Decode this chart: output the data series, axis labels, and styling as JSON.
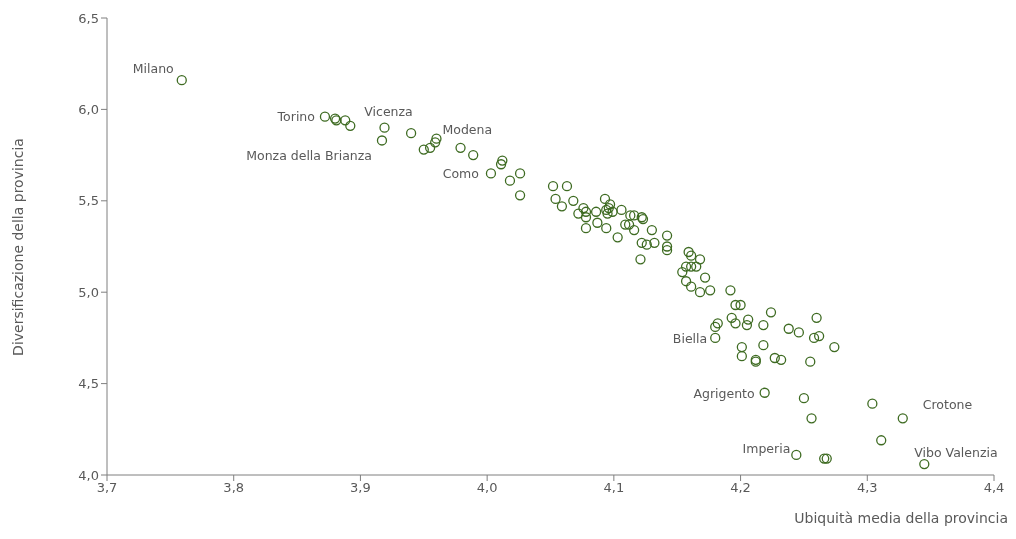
{
  "chart_data": {
    "type": "scatter",
    "xlabel": "Ubiquità media della provincia",
    "ylabel": "Diversificazione della provincia",
    "marker": "circle",
    "grid": false,
    "xlim": [
      3.7,
      4.4
    ],
    "xticks": [
      {
        "value": 3.7,
        "label": "3,7"
      },
      {
        "value": 3.8,
        "label": "3,8"
      },
      {
        "value": 3.9,
        "label": "3,9"
      },
      {
        "value": 4.0,
        "label": "4,0"
      },
      {
        "value": 4.1,
        "label": "4,1"
      },
      {
        "value": 4.2,
        "label": "4,2"
      },
      {
        "value": 4.3,
        "label": "4,3"
      },
      {
        "value": 4.4,
        "label": "4,4"
      }
    ],
    "ylim": [
      4.0,
      6.5
    ],
    "yticks": [
      {
        "value": 4.0,
        "label": "4,0"
      },
      {
        "value": 4.5,
        "label": "4,5"
      },
      {
        "value": 5.0,
        "label": "5,0"
      },
      {
        "value": 5.5,
        "label": "5,5"
      },
      {
        "value": 6.0,
        "label": "6,0"
      },
      {
        "value": 6.5,
        "label": "6,5"
      }
    ],
    "series": [
      {
        "color": "#3e6b22",
        "x": [
          3.759,
          3.872,
          3.88,
          3.881,
          3.888,
          3.892,
          3.919,
          3.917,
          3.94,
          3.95,
          3.955,
          3.959,
          3.96,
          3.979,
          3.989,
          4.012,
          4.011,
          4.003,
          4.018,
          4.026,
          4.026,
          4.052,
          4.063,
          4.054,
          4.059,
          4.068,
          4.072,
          4.076,
          4.078,
          4.078,
          4.086,
          4.078,
          4.087,
          4.094,
          4.093,
          4.094,
          4.096,
          4.097,
          4.095,
          4.099,
          4.106,
          4.103,
          4.109,
          4.113,
          4.116,
          4.112,
          4.116,
          4.123,
          4.122,
          4.13,
          4.121,
          4.122,
          4.126,
          4.132,
          4.142,
          4.142,
          4.142,
          4.159,
          4.161,
          4.154,
          4.157,
          4.161,
          4.165,
          4.168,
          4.157,
          4.161,
          4.168,
          4.176,
          4.172,
          4.192,
          4.196,
          4.2,
          4.182,
          4.18,
          4.18,
          4.193,
          4.196,
          4.206,
          4.205,
          4.218,
          4.224,
          4.238,
          4.246,
          4.26,
          4.258,
          4.262,
          4.274,
          4.201,
          4.201,
          4.218,
          4.212,
          4.212,
          4.227,
          4.232,
          4.255,
          4.219,
          4.25,
          4.256,
          4.304,
          4.328,
          4.311,
          4.244,
          4.266,
          4.268,
          4.345
        ],
        "values": [
          6.16,
          5.96,
          5.95,
          5.94,
          5.94,
          5.91,
          5.9,
          5.83,
          5.87,
          5.78,
          5.79,
          5.82,
          5.84,
          5.79,
          5.75,
          5.72,
          5.7,
          5.65,
          5.61,
          5.65,
          5.53,
          5.58,
          5.58,
          5.51,
          5.47,
          5.5,
          5.43,
          5.46,
          5.41,
          5.44,
          5.44,
          5.35,
          5.38,
          5.35,
          5.51,
          5.45,
          5.46,
          5.48,
          5.43,
          5.44,
          5.45,
          5.3,
          5.37,
          5.42,
          5.42,
          5.37,
          5.34,
          5.4,
          5.41,
          5.34,
          5.18,
          5.27,
          5.26,
          5.27,
          5.31,
          5.23,
          5.25,
          5.22,
          5.2,
          5.11,
          5.14,
          5.14,
          5.14,
          5.18,
          5.06,
          5.03,
          5.0,
          5.01,
          5.08,
          5.01,
          4.93,
          4.93,
          4.83,
          4.81,
          4.75,
          4.86,
          4.83,
          4.85,
          4.82,
          4.82,
          4.89,
          4.8,
          4.78,
          4.86,
          4.75,
          4.76,
          4.7,
          4.7,
          4.65,
          4.71,
          4.63,
          4.62,
          4.64,
          4.63,
          4.62,
          4.45,
          4.42,
          4.31,
          4.39,
          4.31,
          4.19,
          4.11,
          4.09,
          4.09,
          4.06
        ]
      }
    ],
    "annotations": [
      {
        "text": "Milano",
        "x": 3.759,
        "y": 6.16
      },
      {
        "text": "Torino",
        "x": 3.872,
        "y": 5.96
      },
      {
        "text": "Vicenza",
        "x": 3.919,
        "y": 5.9
      },
      {
        "text": "Monza della Brianza",
        "x": 3.917,
        "y": 5.83
      },
      {
        "text": "Modena",
        "x": 3.96,
        "y": 5.84
      },
      {
        "text": "Como",
        "x": 4.003,
        "y": 5.65
      },
      {
        "text": "Biella",
        "x": 4.18,
        "y": 4.75
      },
      {
        "text": "Agrigento",
        "x": 4.219,
        "y": 4.45
      },
      {
        "text": "Crotone",
        "x": 4.328,
        "y": 4.31
      },
      {
        "text": "Imperia",
        "x": 4.244,
        "y": 4.11
      },
      {
        "text": "Vibo Valenzia",
        "x": 4.345,
        "y": 4.06
      }
    ]
  }
}
